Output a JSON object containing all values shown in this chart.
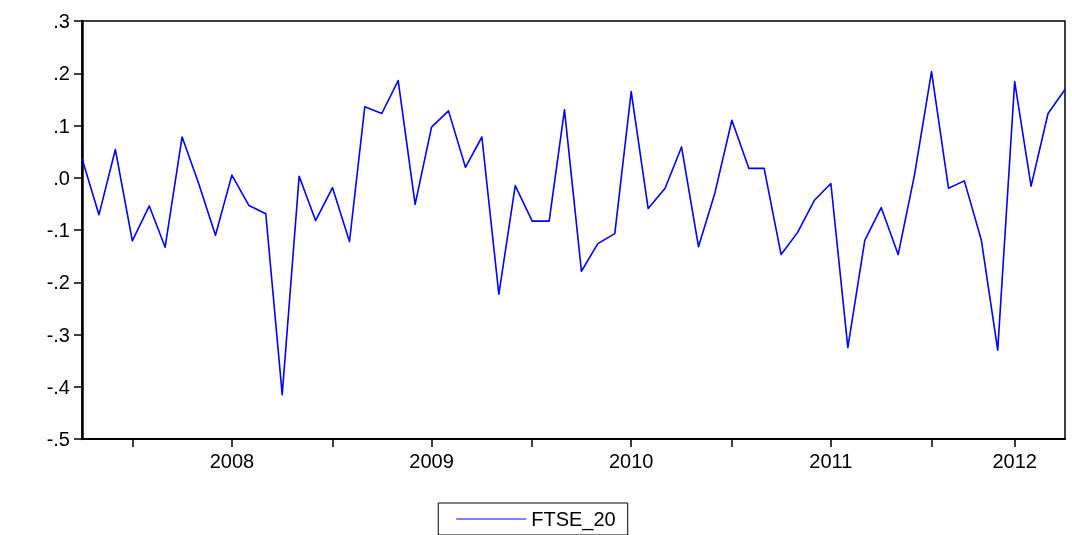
{
  "chart_data": {
    "type": "line",
    "legend": "bottom",
    "grid": false,
    "marker": "none",
    "line_style": "solid",
    "x": [
      "2007-10",
      "2007-11",
      "2007-12",
      "2008-01",
      "2008-02",
      "2008-03",
      "2008-04",
      "2008-05",
      "2008-06",
      "2008-07",
      "2008-08",
      "2008-09",
      "2008-10",
      "2008-11",
      "2008-12",
      "2009-01",
      "2009-02",
      "2009-03",
      "2009-04",
      "2009-05",
      "2009-06",
      "2009-07",
      "2009-08",
      "2009-09",
      "2009-10",
      "2009-11",
      "2009-12",
      "2010-01",
      "2010-02",
      "2010-03",
      "2010-04",
      "2010-05",
      "2010-06",
      "2010-07",
      "2010-08",
      "2010-09",
      "2010-10",
      "2010-11",
      "2010-12",
      "2011-01",
      "2011-02",
      "2011-03",
      "2011-04",
      "2011-05",
      "2011-06",
      "2011-07",
      "2011-08",
      "2011-09",
      "2011-10",
      "2011-11",
      "2011-12",
      "2012-01",
      "2012-02",
      "2012-03",
      "2012-04",
      "2012-05",
      "2012-06",
      "2012-07",
      "2012-08",
      "2012-09"
    ],
    "series": [
      {
        "name": "FTSE_20",
        "color": "#0000ff",
        "values": [
          0.037,
          -0.071,
          0.054,
          -0.121,
          -0.054,
          -0.133,
          0.078,
          -0.01,
          -0.11,
          0.005,
          -0.053,
          -0.069,
          -0.415,
          0.003,
          -0.082,
          -0.019,
          -0.122,
          0.136,
          0.123,
          0.186,
          -0.051,
          0.097,
          0.128,
          0.02,
          0.078,
          -0.223,
          -0.015,
          -0.083,
          -0.083,
          0.13,
          -0.179,
          -0.126,
          -0.107,
          0.165,
          -0.059,
          -0.02,
          0.059,
          -0.132,
          -0.029,
          0.11,
          0.018,
          0.018,
          -0.147,
          -0.105,
          -0.043,
          -0.011,
          -0.325,
          -0.12,
          -0.057,
          -0.147,
          0.006,
          0.203,
          -0.02,
          -0.006,
          -0.119,
          -0.33,
          0.184,
          -0.016,
          0.123,
          0.169
        ]
      }
    ],
    "xlim": [
      "2007-10",
      "2012-09"
    ],
    "xticks": [
      {
        "value": "2008-01",
        "label": null
      },
      {
        "value": "2008-07",
        "label": "2008"
      },
      {
        "value": "2009-01",
        "label": null
      },
      {
        "value": "2009-07",
        "label": "2009"
      },
      {
        "value": "2010-01",
        "label": null
      },
      {
        "value": "2010-07",
        "label": "2010"
      },
      {
        "value": "2011-01",
        "label": null
      },
      {
        "value": "2011-07",
        "label": "2011"
      },
      {
        "value": "2012-01",
        "label": null
      },
      {
        "value": "2012-06",
        "label": "2012"
      }
    ],
    "ylim": [
      -0.5,
      0.3
    ],
    "yticks": [
      {
        "value": -0.5,
        "label": "-.5"
      },
      {
        "value": -0.4,
        "label": "-.4"
      },
      {
        "value": -0.3,
        "label": "-.3"
      },
      {
        "value": -0.2,
        "label": "-.2"
      },
      {
        "value": -0.1,
        "label": "-.1"
      },
      {
        "value": 0,
        "label": ".0"
      },
      {
        "value": 0.1,
        "label": ".1"
      },
      {
        "value": 0.2,
        "label": ".2"
      },
      {
        "value": 0.3,
        "label": ".3"
      }
    ]
  }
}
